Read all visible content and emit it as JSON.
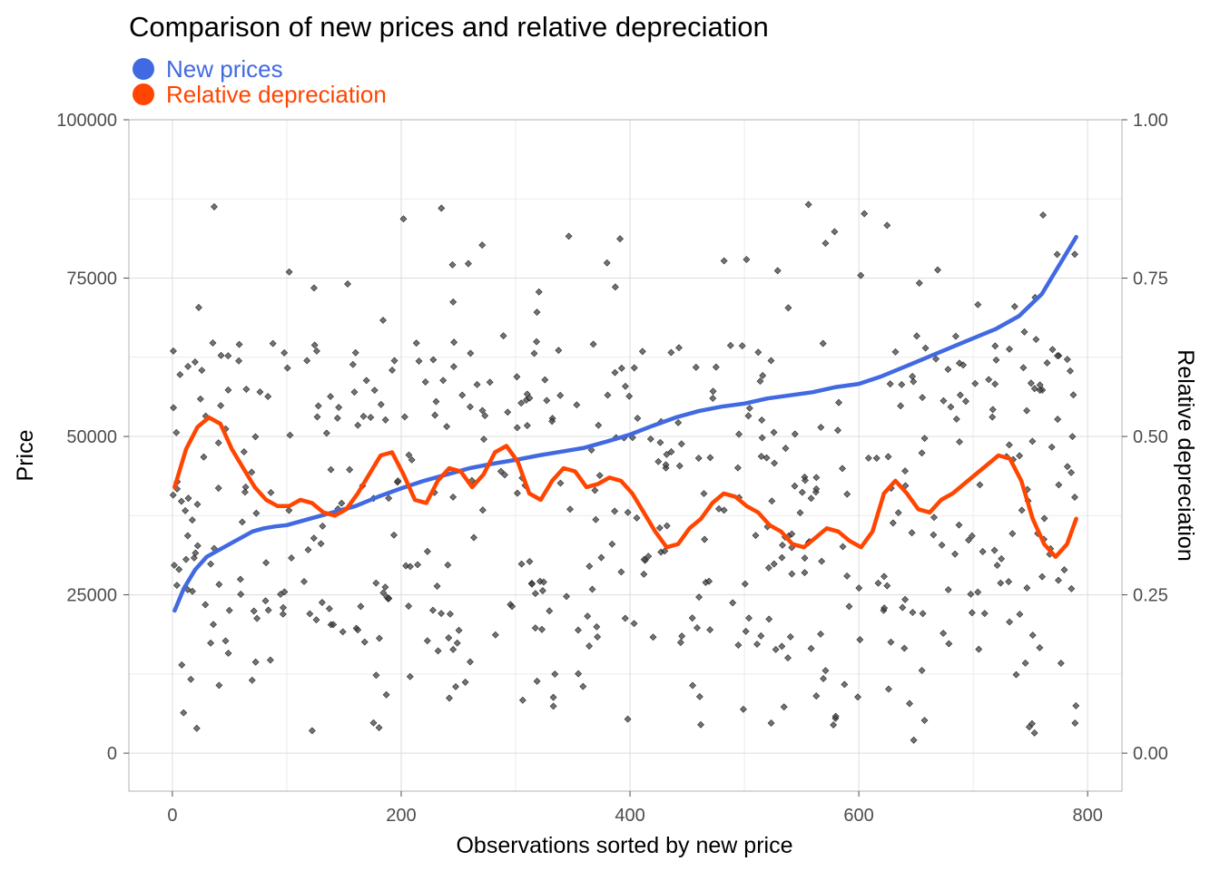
{
  "chart_data": {
    "type": "line",
    "title": "Comparison of new prices and relative depreciation",
    "xlabel": "Observations sorted by new price",
    "ylabel": "Price",
    "y2label": "Relative depreciation",
    "xlim": [
      -38,
      830
    ],
    "ylim": [
      -6000,
      100000
    ],
    "y2lim": [
      -0.06,
      1.0
    ],
    "x_ticks": [
      "0",
      "200",
      "400",
      "600",
      "800"
    ],
    "y_ticks": [
      "0",
      "25000",
      "50000",
      "75000",
      "100000"
    ],
    "y2_ticks": [
      "0.00",
      "0.25",
      "0.50",
      "0.75",
      "1.00"
    ],
    "grid": true,
    "legend_position": "top-left",
    "series": [
      {
        "name": "New prices",
        "color": "#4169E1",
        "axis": "left",
        "x": [
          2,
          10,
          20,
          30,
          40,
          50,
          60,
          70,
          80,
          90,
          100,
          120,
          140,
          160,
          180,
          200,
          220,
          240,
          260,
          280,
          300,
          320,
          340,
          360,
          380,
          400,
          420,
          440,
          460,
          480,
          500,
          520,
          540,
          560,
          580,
          600,
          620,
          640,
          660,
          680,
          700,
          720,
          740,
          760,
          770,
          780,
          790
        ],
        "values": [
          22500,
          26000,
          29000,
          31000,
          32000,
          33000,
          34000,
          35000,
          35500,
          35800,
          36000,
          37000,
          38000,
          39000,
          40500,
          41800,
          43000,
          44000,
          45000,
          45700,
          46300,
          47000,
          47600,
          48200,
          49200,
          50300,
          51700,
          53000,
          54000,
          54700,
          55200,
          56000,
          56500,
          57000,
          57800,
          58300,
          59500,
          61000,
          62500,
          64000,
          65500,
          67000,
          69000,
          72500,
          75500,
          78500,
          81500
        ]
      },
      {
        "name": "Relative depreciation",
        "color": "#FF4500",
        "axis": "right",
        "x": [
          2,
          12,
          22,
          32,
          42,
          52,
          62,
          72,
          82,
          92,
          102,
          112,
          122,
          132,
          142,
          152,
          162,
          172,
          182,
          192,
          202,
          212,
          222,
          232,
          242,
          252,
          262,
          272,
          282,
          292,
          302,
          312,
          322,
          332,
          342,
          352,
          362,
          372,
          382,
          392,
          402,
          412,
          422,
          432,
          442,
          452,
          462,
          472,
          482,
          492,
          502,
          512,
          522,
          532,
          542,
          552,
          562,
          572,
          582,
          592,
          602,
          612,
          622,
          632,
          642,
          652,
          662,
          672,
          682,
          692,
          702,
          712,
          722,
          732,
          742,
          752,
          762,
          772,
          782,
          790
        ],
        "values": [
          0.42,
          0.48,
          0.515,
          0.53,
          0.52,
          0.48,
          0.45,
          0.42,
          0.4,
          0.39,
          0.39,
          0.4,
          0.395,
          0.38,
          0.375,
          0.385,
          0.41,
          0.44,
          0.47,
          0.475,
          0.44,
          0.4,
          0.395,
          0.43,
          0.45,
          0.445,
          0.42,
          0.44,
          0.475,
          0.485,
          0.46,
          0.41,
          0.4,
          0.43,
          0.45,
          0.445,
          0.42,
          0.425,
          0.435,
          0.43,
          0.41,
          0.38,
          0.35,
          0.325,
          0.33,
          0.355,
          0.37,
          0.395,
          0.41,
          0.405,
          0.39,
          0.38,
          0.36,
          0.35,
          0.33,
          0.325,
          0.34,
          0.355,
          0.35,
          0.335,
          0.325,
          0.35,
          0.41,
          0.43,
          0.41,
          0.385,
          0.38,
          0.4,
          0.41,
          0.425,
          0.44,
          0.455,
          0.47,
          0.465,
          0.43,
          0.37,
          0.33,
          0.31,
          0.33,
          0.37
        ]
      }
    ]
  }
}
